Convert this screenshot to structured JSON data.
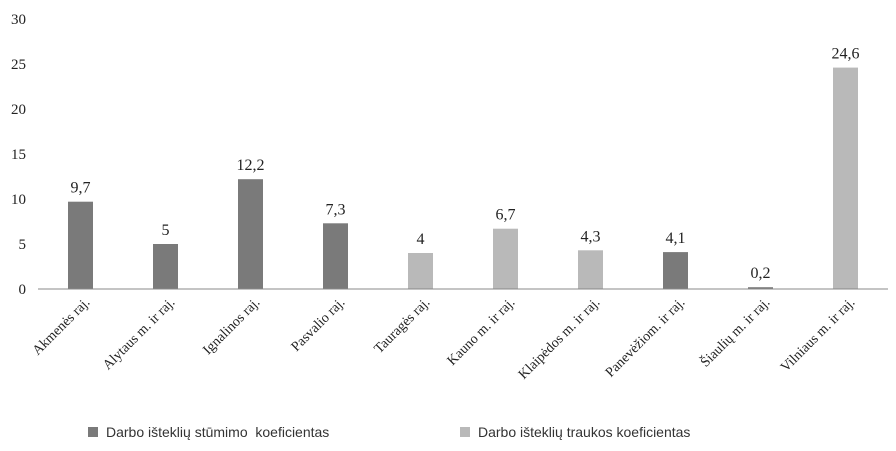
{
  "chart_data": {
    "type": "bar",
    "categories": [
      "Akmenės raj.",
      "Alytaus m. ir raj.",
      "Ignalinos raj.",
      "Pasvalio raj.",
      "Tauragės raj.",
      "Kauno m. ir raj.",
      "Klaipėdos m. ir raj.",
      "Panevėžiom. ir raj.",
      "Šiaulių m. ir raj.",
      "Vilniaus m. ir raj."
    ],
    "values": [
      9.7,
      5,
      12.2,
      7.3,
      4,
      6.7,
      4.3,
      4.1,
      0.2,
      24.6
    ],
    "value_labels": [
      "9,7",
      "5",
      "12,2",
      "7,3",
      "4",
      "6,7",
      "4,3",
      "4,1",
      "0,2",
      "24,6"
    ],
    "series_index": [
      0,
      0,
      0,
      0,
      1,
      1,
      1,
      0,
      0,
      1
    ],
    "series": [
      {
        "name": "Darbo išteklių stūmimo  koeficientas",
        "color": "#7a7a7a"
      },
      {
        "name": "Darbo išteklių traukos koeficientas",
        "color": "#b9b9b9"
      }
    ],
    "yticks": [
      "0",
      "5",
      "10",
      "15",
      "20",
      "25",
      "30"
    ],
    "ylim": [
      0,
      30
    ],
    "grid": false,
    "legend_position": "bottom"
  }
}
